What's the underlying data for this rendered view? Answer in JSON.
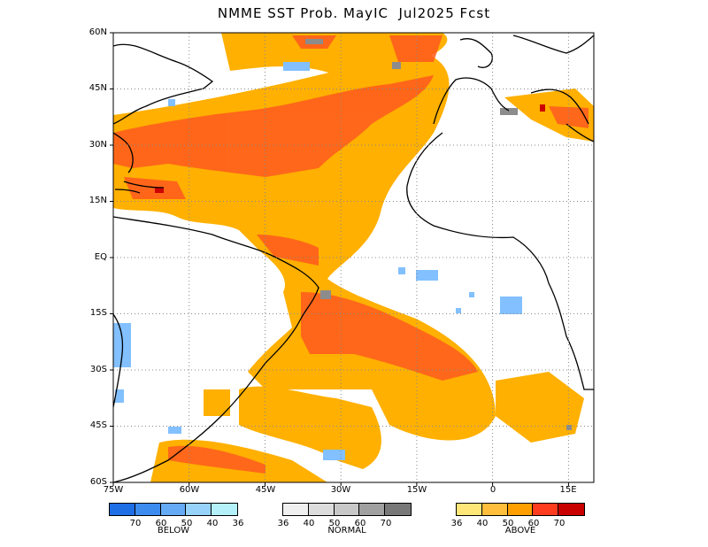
{
  "title": "NMME SST Prob. MayIC  Jul2025 Fcst",
  "map": {
    "lat_labels": [
      "60N",
      "45N",
      "30N",
      "15N",
      "EQ",
      "15S",
      "30S",
      "45S",
      "60S"
    ],
    "lon_labels": [
      "75W",
      "60W",
      "45W",
      "30W",
      "15W",
      "0",
      "15E"
    ],
    "region": {
      "lon": [
        -75,
        20
      ],
      "lat": [
        -60,
        60
      ]
    },
    "grid": "dotted",
    "colors": {
      "land_outline": "#000000",
      "above_36": "#ffe57f",
      "above_40": "#ffc23d",
      "above_50": "#ffa000",
      "above_60": "#ff5a1e",
      "above_70": "#cc0000",
      "below": "#82c0ff",
      "normal": "#8c8c8c"
    }
  },
  "legend": {
    "below": {
      "caption": "BELOW",
      "ticks": [
        "70",
        "60",
        "50",
        "40",
        "36"
      ],
      "colors": [
        "#1e6ee6",
        "#3c8cf0",
        "#64aaf5",
        "#96d2fa",
        "#b4f0fa"
      ]
    },
    "normal": {
      "caption": "NORMAL",
      "ticks": [
        "36",
        "40",
        "50",
        "60",
        "70"
      ],
      "colors": [
        "#f0f0f0",
        "#dcdcdc",
        "#c8c8c8",
        "#a0a0a0",
        "#787878"
      ]
    },
    "above": {
      "caption": "ABOVE",
      "ticks": [
        "36",
        "40",
        "50",
        "60",
        "70"
      ],
      "colors": [
        "#ffe678",
        "#ffbe3c",
        "#ffa000",
        "#ff3c1e",
        "#c80000"
      ]
    }
  }
}
